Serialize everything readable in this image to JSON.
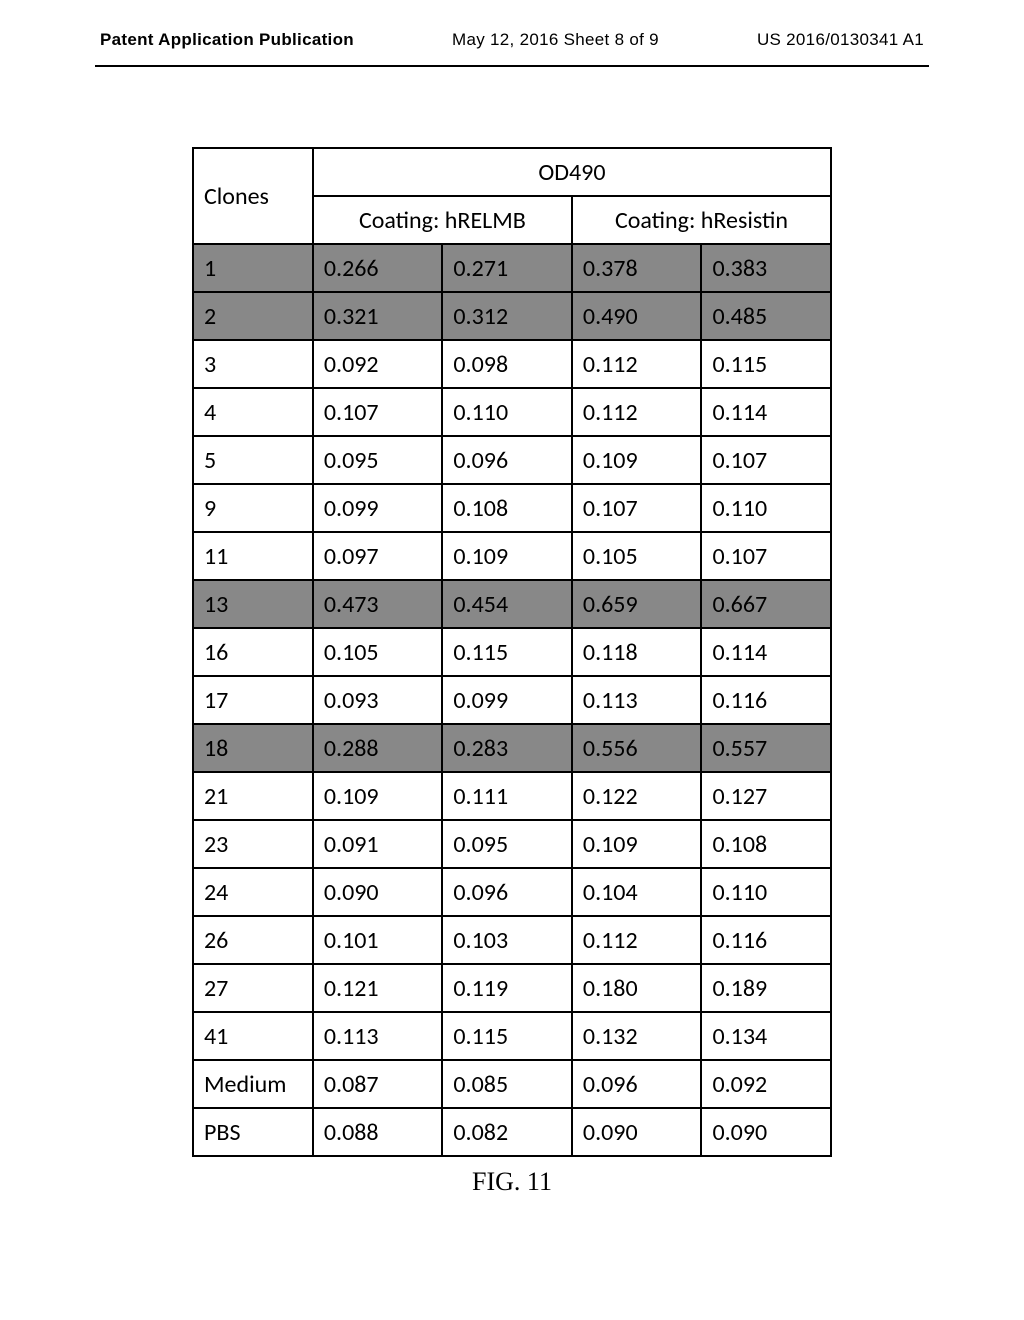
{
  "header": {
    "left": "Patent Application Publication",
    "center": "May 12, 2016  Sheet 8 of 9",
    "right": "US 2016/0130341 A1"
  },
  "table": {
    "col_header_1": "Clones",
    "col_header_main": "OD490",
    "sub_header_1": "Coating: hRELMB",
    "sub_header_2": "Coating: hResistin",
    "rows": [
      {
        "clone": "1",
        "v1": "0.266",
        "v2": "0.271",
        "v3": "0.378",
        "v4": "0.383",
        "highlighted": true
      },
      {
        "clone": "2",
        "v1": "0.321",
        "v2": "0.312",
        "v3": "0.490",
        "v4": "0.485",
        "highlighted": true
      },
      {
        "clone": "3",
        "v1": "0.092",
        "v2": "0.098",
        "v3": "0.112",
        "v4": "0.115",
        "highlighted": false
      },
      {
        "clone": "4",
        "v1": "0.107",
        "v2": "0.110",
        "v3": "0.112",
        "v4": "0.114",
        "highlighted": false
      },
      {
        "clone": "5",
        "v1": "0.095",
        "v2": "0.096",
        "v3": "0.109",
        "v4": "0.107",
        "highlighted": false
      },
      {
        "clone": "9",
        "v1": "0.099",
        "v2": "0.108",
        "v3": "0.107",
        "v4": "0.110",
        "highlighted": false
      },
      {
        "clone": "11",
        "v1": "0.097",
        "v2": "0.109",
        "v3": "0.105",
        "v4": "0.107",
        "highlighted": false
      },
      {
        "clone": "13",
        "v1": "0.473",
        "v2": "0.454",
        "v3": "0.659",
        "v4": "0.667",
        "highlighted": true
      },
      {
        "clone": "16",
        "v1": "0.105",
        "v2": "0.115",
        "v3": "0.118",
        "v4": "0.114",
        "highlighted": false
      },
      {
        "clone": "17",
        "v1": "0.093",
        "v2": "0.099",
        "v3": "0.113",
        "v4": "0.116",
        "highlighted": false
      },
      {
        "clone": "18",
        "v1": "0.288",
        "v2": "0.283",
        "v3": "0.556",
        "v4": "0.557",
        "highlighted": true
      },
      {
        "clone": "21",
        "v1": "0.109",
        "v2": "0.111",
        "v3": "0.122",
        "v4": "0.127",
        "highlighted": false
      },
      {
        "clone": "23",
        "v1": "0.091",
        "v2": "0.095",
        "v3": "0.109",
        "v4": "0.108",
        "highlighted": false
      },
      {
        "clone": "24",
        "v1": "0.090",
        "v2": "0.096",
        "v3": "0.104",
        "v4": "0.110",
        "highlighted": false
      },
      {
        "clone": "26",
        "v1": "0.101",
        "v2": "0.103",
        "v3": "0.112",
        "v4": "0.116",
        "highlighted": false
      },
      {
        "clone": "27",
        "v1": "0.121",
        "v2": "0.119",
        "v3": "0.180",
        "v4": "0.189",
        "highlighted": false
      },
      {
        "clone": "41",
        "v1": "0.113",
        "v2": "0.115",
        "v3": "0.132",
        "v4": "0.134",
        "highlighted": false
      },
      {
        "clone": "Medium",
        "v1": "0.087",
        "v2": "0.085",
        "v3": "0.096",
        "v4": "0.092",
        "highlighted": false
      },
      {
        "clone": "PBS",
        "v1": "0.088",
        "v2": "0.082",
        "v3": "0.090",
        "v4": "0.090",
        "highlighted": false
      }
    ]
  },
  "figure_label": "FIG. 11",
  "styling": {
    "background_color": "#ffffff",
    "border_color": "#000000",
    "highlight_color": "#888888",
    "font_family_body": "Calibri, Arial, sans-serif",
    "font_family_header": "Arial, Helvetica, sans-serif",
    "font_family_figure": "Times New Roman, Times, serif",
    "table_font_size": 24,
    "header_font_size": 17,
    "figure_font_size": 26
  }
}
